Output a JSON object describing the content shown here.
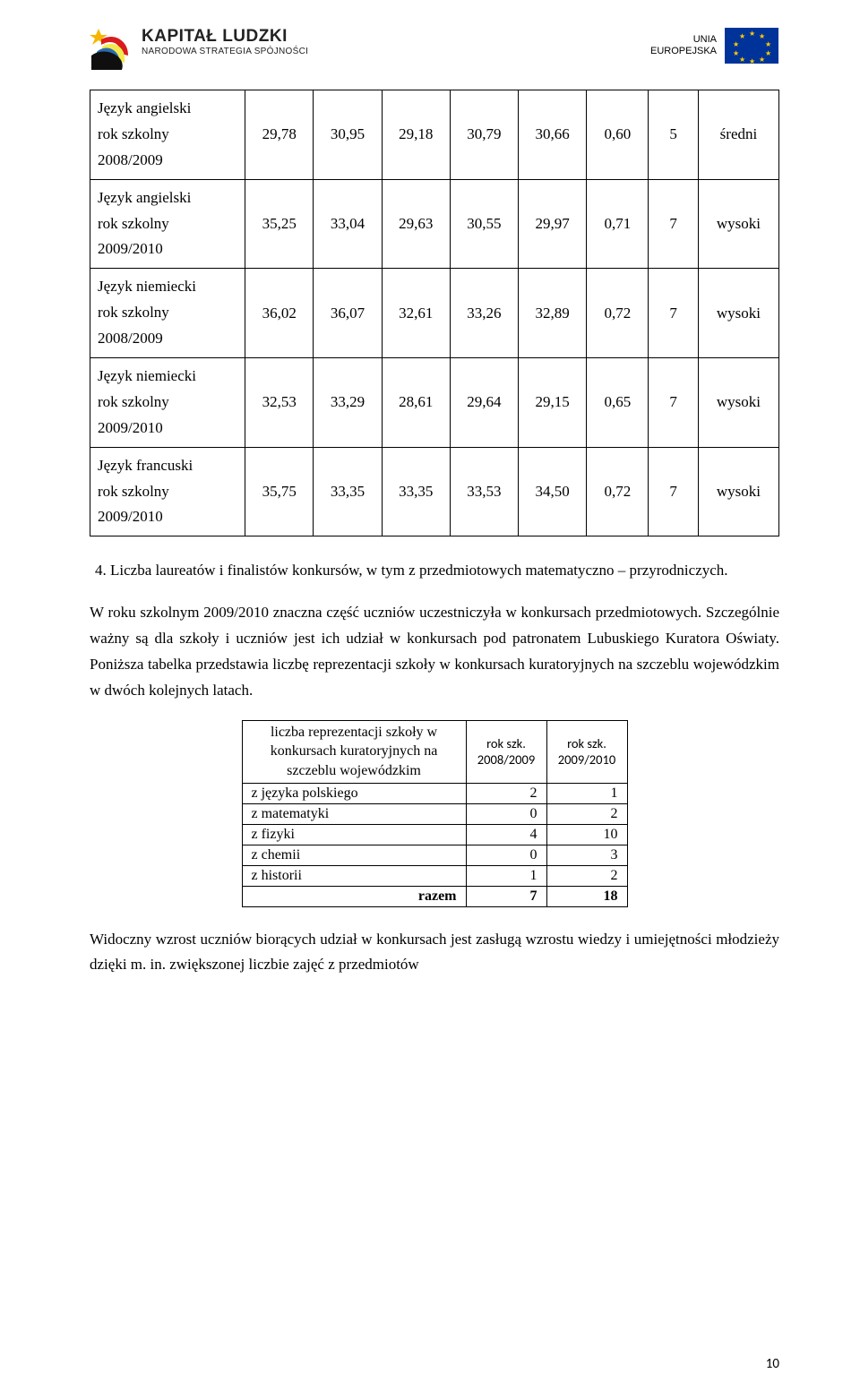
{
  "header": {
    "kl_line1": "KAPITAŁ LUDZKI",
    "kl_line2": "NARODOWA STRATEGIA SPÓJNOŚCI",
    "eu_line1": "UNIA",
    "eu_line2": "EUROPEJSKA"
  },
  "main_table": {
    "rows": [
      {
        "label_lines": [
          "Język angielski",
          "rok szkolny",
          "2008/2009"
        ],
        "v": [
          "29,78",
          "30,95",
          "29,18",
          "30,79",
          "30,66",
          "0,60",
          "5",
          "średni"
        ]
      },
      {
        "label_lines": [
          "Język angielski",
          "rok szkolny",
          "2009/2010"
        ],
        "v": [
          "35,25",
          "33,04",
          "29,63",
          "30,55",
          "29,97",
          "0,71",
          "7",
          "wysoki"
        ]
      },
      {
        "label_lines": [
          "Język niemiecki",
          "rok szkolny",
          "2008/2009"
        ],
        "v": [
          "36,02",
          "36,07",
          "32,61",
          "33,26",
          "32,89",
          "0,72",
          "7",
          "wysoki"
        ]
      },
      {
        "label_lines": [
          "Język niemiecki",
          "rok szkolny",
          "2009/2010"
        ],
        "v": [
          "32,53",
          "33,29",
          "28,61",
          "29,64",
          "29,15",
          "0,65",
          "7",
          "wysoki"
        ]
      },
      {
        "label_lines": [
          "Język francuski",
          "rok szkolny",
          "2009/2010"
        ],
        "v": [
          "35,75",
          "33,35",
          "33,35",
          "33,53",
          "34,50",
          "0,72",
          "7",
          "wysoki"
        ]
      }
    ],
    "col_widths": [
      "150px",
      "66px",
      "66px",
      "66px",
      "66px",
      "66px",
      "60px",
      "48px",
      "78px"
    ]
  },
  "num_item": "4.  Liczba laureatów i finalistów konkursów, w tym z przedmiotowych matematyczno – przyrodniczych.",
  "para1": "W roku szkolnym 2009/2010 znaczna część uczniów uczestniczyła w konkursach przedmiotowych. Szczególnie ważny są dla szkoły i uczniów jest ich udział w konkursach pod patronatem Lubuskiego Kuratora Oświaty. Poniższa tabelka przedstawia liczbę reprezentacji szkoły w konkursach kuratoryjnych na szczeblu wojewódzkim w dwóch kolejnych latach.",
  "inner_table": {
    "hdr_left_lines": [
      "liczba reprezentacji szkoły w",
      "konkursach kuratoryjnych na",
      "szczeblu wojewódzkim"
    ],
    "hdr_col1_lines": [
      "rok szk.",
      "2008/2009"
    ],
    "hdr_col2_lines": [
      "rok szk.",
      "2009/2010"
    ],
    "rows": [
      {
        "label": "z języka polskiego",
        "a": "2",
        "b": "1"
      },
      {
        "label": "z matematyki",
        "a": "0",
        "b": "2"
      },
      {
        "label": "z fizyki",
        "a": "4",
        "b": "10"
      },
      {
        "label": "z chemii",
        "a": "0",
        "b": "3"
      },
      {
        "label": "z historii",
        "a": "1",
        "b": "2"
      }
    ],
    "total_label": "razem",
    "total_a": "7",
    "total_b": "18"
  },
  "para2": "Widoczny wzrost uczniów biorących udział w konkursach jest zasługą wzrostu wiedzy i umiejętności młodzieży dzięki m. in. zwiększonej liczbie zajęć z przedmiotów",
  "page_number": "10",
  "colors": {
    "kl_star": "#f7b500",
    "kl_red": "#d91c1c",
    "kl_blue": "#2a6bb0",
    "kl_yellow": "#f2e94f",
    "eu_blue": "#003399",
    "eu_star": "#ffcc00"
  }
}
